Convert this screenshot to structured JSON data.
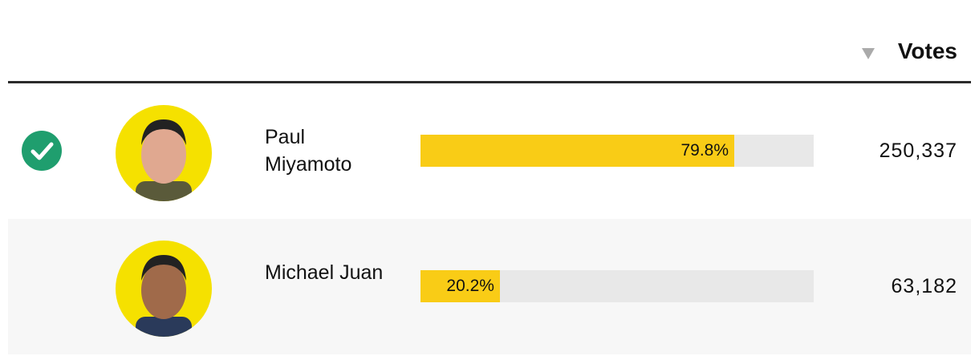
{
  "header": {
    "votes_label": "Votes"
  },
  "rows": [
    {
      "name": "Paul Miyamoto",
      "winner": true,
      "percent": 79.8,
      "percent_label": "79.8%",
      "votes": "250,337"
    },
    {
      "name": "Michael Juan",
      "winner": false,
      "percent": 20.2,
      "percent_label": "20.2%",
      "votes": "63,182"
    }
  ]
}
